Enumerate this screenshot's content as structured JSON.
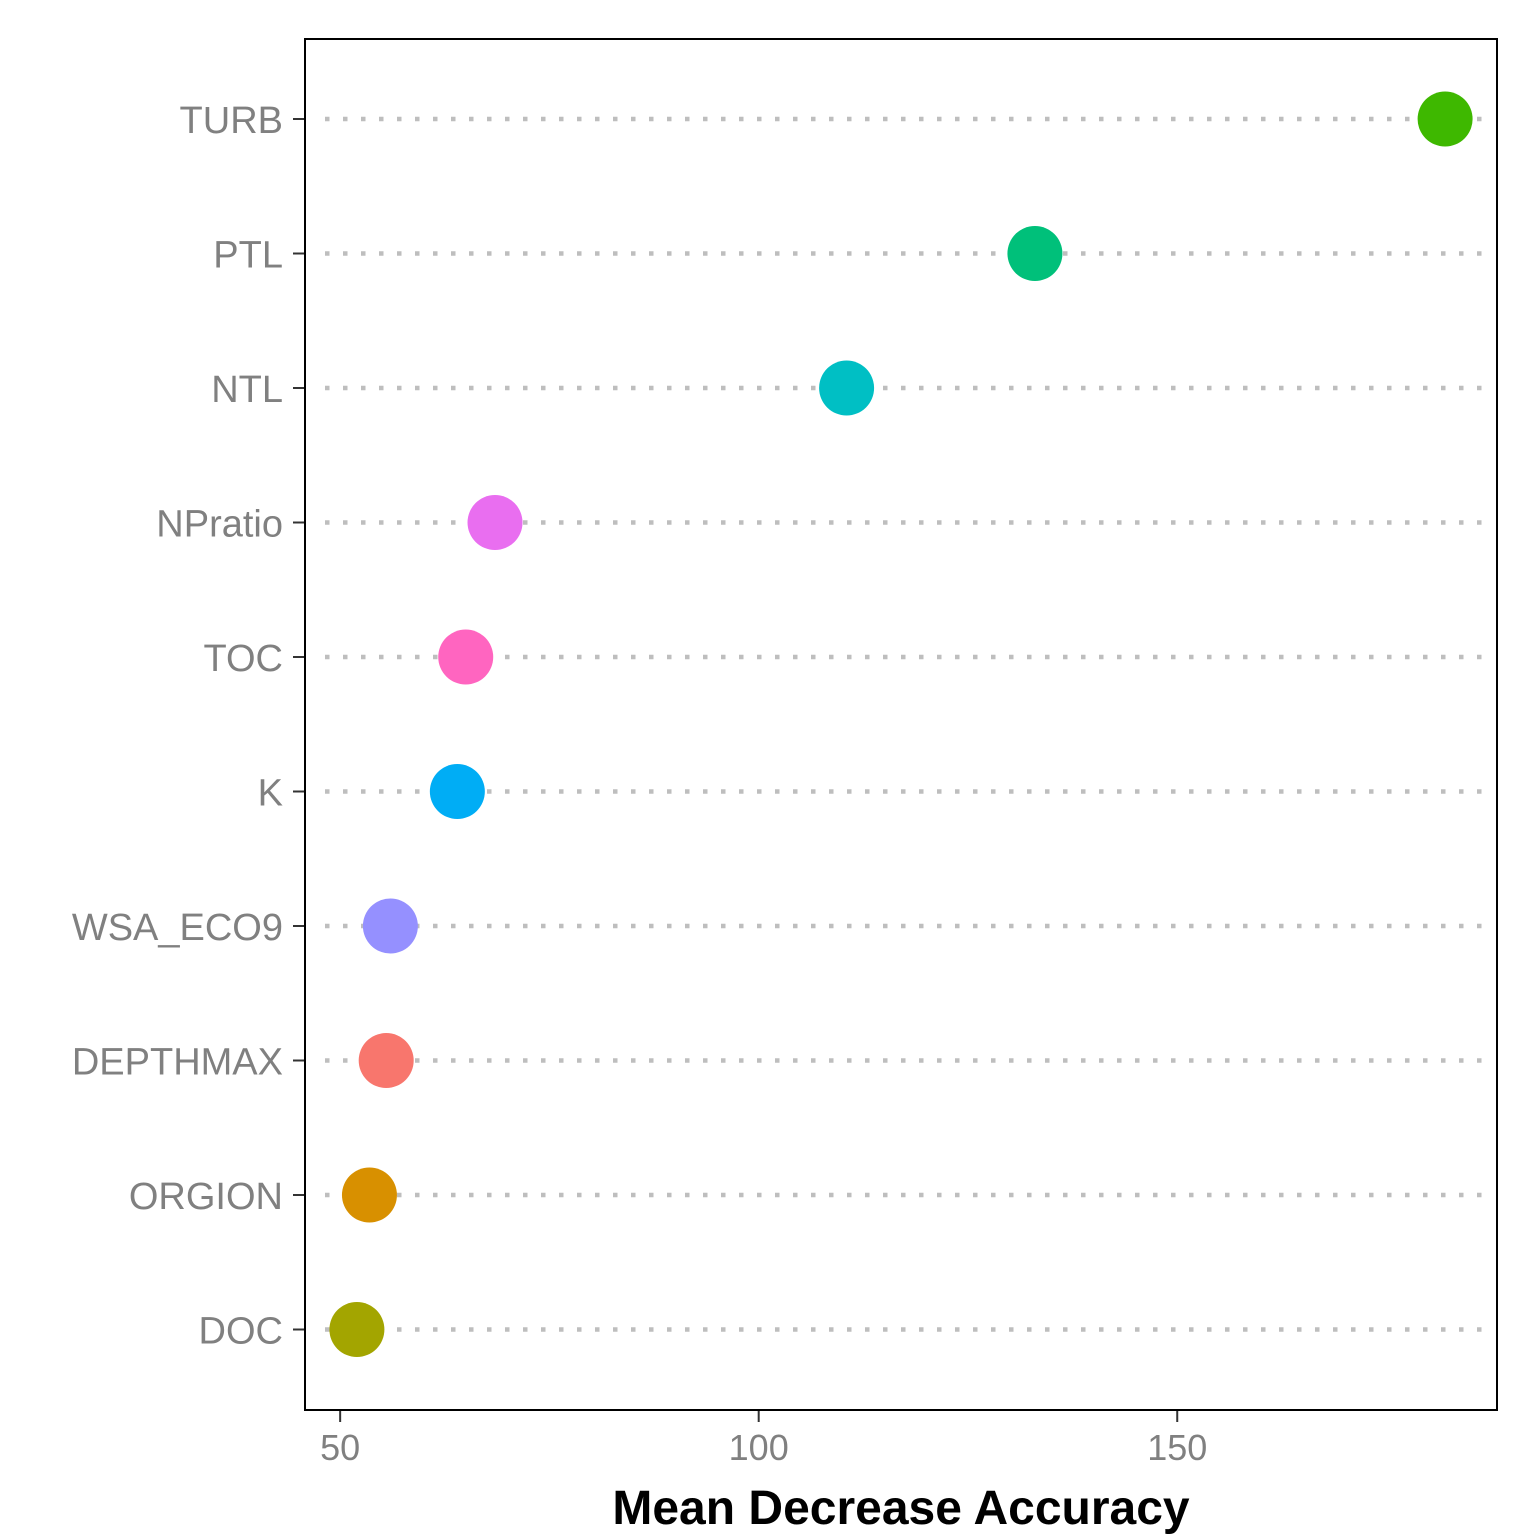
{
  "chart_data": {
    "type": "scatter",
    "xlabel": "Mean Decrease Accuracy",
    "ylabel": "",
    "xlim": [
      45.8,
      188.2
    ],
    "x_ticks": [
      50,
      100,
      150
    ],
    "grid": "horizontal dotted",
    "legend": "none",
    "categories": [
      "TURB",
      "PTL",
      "NTL",
      "NPratio",
      "TOC",
      "K",
      "WSA_ECO9",
      "DEPTHMAX",
      "ORGION",
      "DOC"
    ],
    "values": [
      182,
      133,
      110.5,
      68.5,
      65,
      64,
      56,
      55.5,
      53.5,
      52
    ],
    "colors": [
      "#3EB800",
      "#00C07A",
      "#00BFC4",
      "#E96EF0",
      "#FF65C0",
      "#00ADF5",
      "#9590FF",
      "#F8766D",
      "#D89000",
      "#A3A500"
    ]
  }
}
